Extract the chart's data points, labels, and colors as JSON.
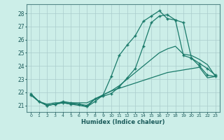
{
  "xlabel": "Humidex (Indice chaleur)",
  "bg_color": "#cceee8",
  "grid_color": "#aacccc",
  "line_color": "#1a7a6a",
  "xlim": [
    -0.5,
    23.5
  ],
  "ylim": [
    20.5,
    28.7
  ],
  "yticks": [
    21,
    22,
    23,
    24,
    25,
    26,
    27,
    28
  ],
  "xticks": [
    0,
    1,
    2,
    3,
    4,
    5,
    6,
    7,
    8,
    9,
    10,
    11,
    12,
    13,
    14,
    15,
    16,
    17,
    18,
    19,
    20,
    21,
    22,
    23
  ],
  "lines": [
    {
      "x": [
        0,
        1,
        2,
        3,
        4,
        5,
        6,
        7,
        8,
        9,
        10,
        11,
        12,
        13,
        14,
        15,
        16,
        17,
        18,
        19,
        20,
        21,
        22,
        23
      ],
      "y": [
        21.9,
        21.3,
        21.0,
        21.1,
        21.2,
        21.1,
        21.1,
        20.9,
        21.3,
        21.8,
        23.2,
        24.8,
        25.6,
        26.3,
        27.4,
        27.8,
        28.2,
        27.6,
        27.5,
        24.8,
        24.6,
        24.0,
        23.3,
        23.2
      ],
      "marker": true
    },
    {
      "x": [
        0,
        1,
        2,
        3,
        4,
        5,
        6,
        7,
        8,
        9,
        10,
        11,
        12,
        13,
        14,
        15,
        16,
        17,
        18,
        19,
        20,
        21,
        22,
        23
      ],
      "y": [
        21.8,
        21.3,
        21.0,
        21.1,
        21.3,
        21.2,
        21.1,
        21.0,
        21.5,
        21.7,
        21.9,
        22.4,
        23.1,
        23.8,
        25.5,
        27.3,
        27.8,
        27.9,
        27.5,
        27.3,
        24.6,
        24.2,
        23.8,
        23.3
      ],
      "marker": true
    },
    {
      "x": [
        0,
        1,
        2,
        3,
        4,
        5,
        6,
        7,
        8,
        9,
        10,
        11,
        12,
        13,
        14,
        15,
        16,
        17,
        18,
        19,
        20,
        21,
        22,
        23
      ],
      "y": [
        21.8,
        21.3,
        21.0,
        21.1,
        21.2,
        21.1,
        21.0,
        20.9,
        21.5,
        21.8,
        22.1,
        22.5,
        23.0,
        23.5,
        24.0,
        24.5,
        25.0,
        25.3,
        25.5,
        24.9,
        24.8,
        24.5,
        24.1,
        23.2
      ],
      "marker": false
    },
    {
      "x": [
        0,
        1,
        2,
        3,
        4,
        5,
        6,
        7,
        8,
        9,
        10,
        11,
        12,
        13,
        14,
        15,
        16,
        17,
        18,
        19,
        20,
        21,
        22,
        23
      ],
      "y": [
        21.8,
        21.3,
        21.1,
        21.2,
        21.2,
        21.2,
        21.2,
        21.2,
        21.5,
        21.8,
        22.1,
        22.3,
        22.5,
        22.7,
        22.9,
        23.1,
        23.3,
        23.5,
        23.6,
        23.7,
        23.8,
        23.9,
        23.1,
        23.2
      ],
      "marker": false
    }
  ]
}
